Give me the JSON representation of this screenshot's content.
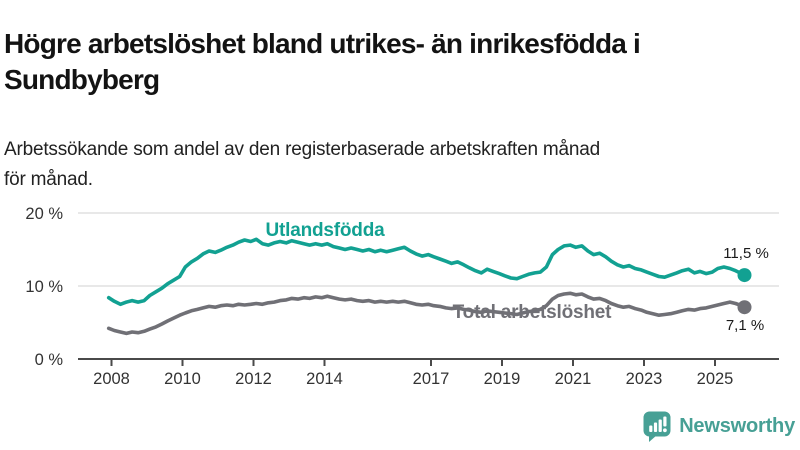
{
  "header": {
    "title": "Högre arbetslöshet bland utrikes- än inrikesfödda i\nSundbyberg",
    "subtitle": "Arbetssökande som andel av den registerbaserade arbetskraften månad\nför månad."
  },
  "footer": {
    "brand": "Newsworthy",
    "brand_color": "#47a095",
    "logo_icon": "bar-chart-speech-bubble-icon"
  },
  "chart_data": {
    "type": "line",
    "unit": "%",
    "grid": "horizontal-only",
    "legend_position": "inline-labels",
    "x_axis": {
      "ticks": [
        {
          "value": 2008,
          "label": "2008"
        },
        {
          "value": 2010,
          "label": "2010"
        },
        {
          "value": 2012,
          "label": "2012"
        },
        {
          "value": 2014,
          "label": "2014"
        },
        {
          "value": 2017,
          "label": "2017"
        },
        {
          "value": 2019,
          "label": "2019"
        },
        {
          "value": 2021,
          "label": "2021"
        },
        {
          "value": 2023,
          "label": "2023"
        },
        {
          "value": 2025,
          "label": "2025"
        }
      ],
      "range": [
        2007.9,
        2026.1
      ]
    },
    "y_axis": {
      "ticks": [
        {
          "value": 0,
          "label": "0 %"
        },
        {
          "value": 10,
          "label": "10 %"
        },
        {
          "value": 20,
          "label": "20 %"
        }
      ],
      "gridlines": [
        10,
        20
      ],
      "range": [
        0,
        21
      ]
    },
    "series": [
      {
        "name": "Utlandsfödda",
        "color": "#12a192",
        "end_label": "11,5 %",
        "end_value": 11.5,
        "points": [
          [
            2007.92,
            8.4
          ],
          [
            2008.08,
            7.9
          ],
          [
            2008.25,
            7.5
          ],
          [
            2008.42,
            7.8
          ],
          [
            2008.58,
            8.0
          ],
          [
            2008.75,
            7.8
          ],
          [
            2008.92,
            8.0
          ],
          [
            2009.08,
            8.7
          ],
          [
            2009.25,
            9.2
          ],
          [
            2009.42,
            9.7
          ],
          [
            2009.58,
            10.3
          ],
          [
            2009.75,
            10.8
          ],
          [
            2009.92,
            11.3
          ],
          [
            2010.08,
            12.6
          ],
          [
            2010.25,
            13.3
          ],
          [
            2010.42,
            13.8
          ],
          [
            2010.58,
            14.4
          ],
          [
            2010.75,
            14.8
          ],
          [
            2010.92,
            14.6
          ],
          [
            2011.08,
            14.9
          ],
          [
            2011.25,
            15.3
          ],
          [
            2011.42,
            15.6
          ],
          [
            2011.58,
            16.0
          ],
          [
            2011.75,
            16.3
          ],
          [
            2011.92,
            16.1
          ],
          [
            2012.08,
            16.4
          ],
          [
            2012.25,
            15.8
          ],
          [
            2012.42,
            15.6
          ],
          [
            2012.58,
            15.9
          ],
          [
            2012.75,
            16.1
          ],
          [
            2012.92,
            15.9
          ],
          [
            2013.08,
            16.2
          ],
          [
            2013.25,
            16.0
          ],
          [
            2013.42,
            15.8
          ],
          [
            2013.58,
            15.6
          ],
          [
            2013.75,
            15.8
          ],
          [
            2013.92,
            15.6
          ],
          [
            2014.08,
            15.8
          ],
          [
            2014.25,
            15.4
          ],
          [
            2014.42,
            15.2
          ],
          [
            2014.58,
            15.0
          ],
          [
            2014.75,
            15.2
          ],
          [
            2014.92,
            15.0
          ],
          [
            2015.08,
            14.8
          ],
          [
            2015.25,
            15.0
          ],
          [
            2015.42,
            14.7
          ],
          [
            2015.58,
            14.9
          ],
          [
            2015.75,
            14.7
          ],
          [
            2015.92,
            14.9
          ],
          [
            2016.08,
            15.1
          ],
          [
            2016.25,
            15.3
          ],
          [
            2016.42,
            14.8
          ],
          [
            2016.58,
            14.4
          ],
          [
            2016.75,
            14.1
          ],
          [
            2016.92,
            14.3
          ],
          [
            2017.08,
            14.0
          ],
          [
            2017.25,
            13.7
          ],
          [
            2017.42,
            13.4
          ],
          [
            2017.58,
            13.1
          ],
          [
            2017.75,
            13.3
          ],
          [
            2017.92,
            12.9
          ],
          [
            2018.08,
            12.5
          ],
          [
            2018.25,
            12.1
          ],
          [
            2018.42,
            11.8
          ],
          [
            2018.58,
            12.3
          ],
          [
            2018.75,
            12.0
          ],
          [
            2018.92,
            11.7
          ],
          [
            2019.08,
            11.4
          ],
          [
            2019.25,
            11.1
          ],
          [
            2019.42,
            11.0
          ],
          [
            2019.58,
            11.3
          ],
          [
            2019.75,
            11.6
          ],
          [
            2019.92,
            11.8
          ],
          [
            2020.08,
            11.9
          ],
          [
            2020.25,
            12.6
          ],
          [
            2020.42,
            14.3
          ],
          [
            2020.58,
            15.0
          ],
          [
            2020.75,
            15.5
          ],
          [
            2020.92,
            15.6
          ],
          [
            2021.08,
            15.3
          ],
          [
            2021.25,
            15.5
          ],
          [
            2021.42,
            14.8
          ],
          [
            2021.58,
            14.3
          ],
          [
            2021.75,
            14.5
          ],
          [
            2021.92,
            14.0
          ],
          [
            2022.08,
            13.4
          ],
          [
            2022.25,
            12.9
          ],
          [
            2022.42,
            12.6
          ],
          [
            2022.58,
            12.8
          ],
          [
            2022.75,
            12.4
          ],
          [
            2022.92,
            12.2
          ],
          [
            2023.08,
            11.9
          ],
          [
            2023.25,
            11.6
          ],
          [
            2023.42,
            11.3
          ],
          [
            2023.58,
            11.2
          ],
          [
            2023.75,
            11.5
          ],
          [
            2023.92,
            11.8
          ],
          [
            2024.08,
            12.1
          ],
          [
            2024.25,
            12.3
          ],
          [
            2024.42,
            11.8
          ],
          [
            2024.58,
            12.0
          ],
          [
            2024.75,
            11.7
          ],
          [
            2024.92,
            11.9
          ],
          [
            2025.08,
            12.4
          ],
          [
            2025.25,
            12.6
          ],
          [
            2025.42,
            12.4
          ],
          [
            2025.58,
            12.1
          ],
          [
            2025.75,
            11.7
          ],
          [
            2025.83,
            11.5
          ]
        ]
      },
      {
        "name": "Total arbetslöshet",
        "color": "#707076",
        "end_label": "7,1 %",
        "end_value": 7.1,
        "points": [
          [
            2007.92,
            4.2
          ],
          [
            2008.08,
            3.9
          ],
          [
            2008.25,
            3.7
          ],
          [
            2008.42,
            3.5
          ],
          [
            2008.58,
            3.7
          ],
          [
            2008.75,
            3.6
          ],
          [
            2008.92,
            3.8
          ],
          [
            2009.08,
            4.1
          ],
          [
            2009.25,
            4.4
          ],
          [
            2009.42,
            4.8
          ],
          [
            2009.58,
            5.2
          ],
          [
            2009.75,
            5.6
          ],
          [
            2009.92,
            6.0
          ],
          [
            2010.08,
            6.3
          ],
          [
            2010.25,
            6.6
          ],
          [
            2010.42,
            6.8
          ],
          [
            2010.58,
            7.0
          ],
          [
            2010.75,
            7.2
          ],
          [
            2010.92,
            7.1
          ],
          [
            2011.08,
            7.3
          ],
          [
            2011.25,
            7.4
          ],
          [
            2011.42,
            7.3
          ],
          [
            2011.58,
            7.5
          ],
          [
            2011.75,
            7.4
          ],
          [
            2011.92,
            7.5
          ],
          [
            2012.08,
            7.6
          ],
          [
            2012.25,
            7.5
          ],
          [
            2012.42,
            7.7
          ],
          [
            2012.58,
            7.8
          ],
          [
            2012.75,
            8.0
          ],
          [
            2012.92,
            8.1
          ],
          [
            2013.08,
            8.3
          ],
          [
            2013.25,
            8.2
          ],
          [
            2013.42,
            8.4
          ],
          [
            2013.58,
            8.3
          ],
          [
            2013.75,
            8.5
          ],
          [
            2013.92,
            8.4
          ],
          [
            2014.08,
            8.6
          ],
          [
            2014.25,
            8.4
          ],
          [
            2014.42,
            8.2
          ],
          [
            2014.58,
            8.1
          ],
          [
            2014.75,
            8.2
          ],
          [
            2014.92,
            8.0
          ],
          [
            2015.08,
            7.9
          ],
          [
            2015.25,
            8.0
          ],
          [
            2015.42,
            7.8
          ],
          [
            2015.58,
            7.9
          ],
          [
            2015.75,
            7.8
          ],
          [
            2015.92,
            7.9
          ],
          [
            2016.08,
            7.8
          ],
          [
            2016.25,
            7.9
          ],
          [
            2016.42,
            7.7
          ],
          [
            2016.58,
            7.5
          ],
          [
            2016.75,
            7.4
          ],
          [
            2016.92,
            7.5
          ],
          [
            2017.08,
            7.3
          ],
          [
            2017.25,
            7.2
          ],
          [
            2017.42,
            7.0
          ],
          [
            2017.58,
            6.9
          ],
          [
            2017.75,
            7.0
          ],
          [
            2017.92,
            6.8
          ],
          [
            2018.08,
            6.7
          ],
          [
            2018.25,
            6.5
          ],
          [
            2018.42,
            6.4
          ],
          [
            2018.58,
            6.6
          ],
          [
            2018.75,
            6.5
          ],
          [
            2018.92,
            6.4
          ],
          [
            2019.08,
            6.3
          ],
          [
            2019.25,
            6.2
          ],
          [
            2019.42,
            6.1
          ],
          [
            2019.58,
            6.3
          ],
          [
            2019.75,
            6.5
          ],
          [
            2019.92,
            6.6
          ],
          [
            2020.08,
            6.8
          ],
          [
            2020.25,
            7.3
          ],
          [
            2020.42,
            8.2
          ],
          [
            2020.58,
            8.7
          ],
          [
            2020.75,
            8.9
          ],
          [
            2020.92,
            9.0
          ],
          [
            2021.08,
            8.8
          ],
          [
            2021.25,
            8.9
          ],
          [
            2021.42,
            8.5
          ],
          [
            2021.58,
            8.2
          ],
          [
            2021.75,
            8.3
          ],
          [
            2021.92,
            8.0
          ],
          [
            2022.08,
            7.6
          ],
          [
            2022.25,
            7.3
          ],
          [
            2022.42,
            7.1
          ],
          [
            2022.58,
            7.2
          ],
          [
            2022.75,
            6.9
          ],
          [
            2022.92,
            6.7
          ],
          [
            2023.08,
            6.4
          ],
          [
            2023.25,
            6.2
          ],
          [
            2023.42,
            6.0
          ],
          [
            2023.58,
            6.1
          ],
          [
            2023.75,
            6.2
          ],
          [
            2023.92,
            6.4
          ],
          [
            2024.08,
            6.6
          ],
          [
            2024.25,
            6.8
          ],
          [
            2024.42,
            6.7
          ],
          [
            2024.58,
            6.9
          ],
          [
            2024.75,
            7.0
          ],
          [
            2024.92,
            7.2
          ],
          [
            2025.08,
            7.4
          ],
          [
            2025.25,
            7.6
          ],
          [
            2025.42,
            7.8
          ],
          [
            2025.58,
            7.6
          ],
          [
            2025.75,
            7.3
          ],
          [
            2025.83,
            7.1
          ]
        ]
      }
    ],
    "colors": {
      "axis": "#4a4a4a",
      "gridline": "#d9d9d9",
      "tick_label": "#333333",
      "end_label_text": "#1a1a1a"
    }
  }
}
